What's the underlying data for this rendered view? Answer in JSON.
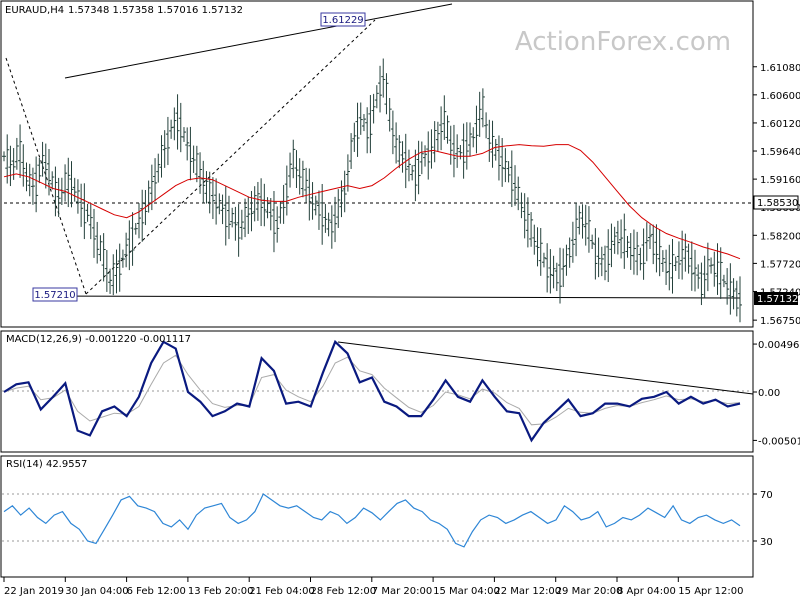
{
  "header": {
    "symbol": "EURAUD,H4",
    "ohlc": "1.57348 1.57358 1.57016 1.57132"
  },
  "watermark": "ActionForex.com",
  "annotations": {
    "high_label": "1.61229",
    "low_label": "1.57210",
    "level_label": "1.58530",
    "current_label": "1.57132"
  },
  "chart_data": [
    {
      "type": "bar",
      "title": "EURAUD,H4",
      "subtitle": "1.57348 1.57358 1.57016 1.57132",
      "ylim": [
        1.5665,
        1.6205
      ],
      "yticks": [
        "1.61080",
        "1.60600",
        "1.60120",
        "1.59640",
        "1.59160",
        "1.58680",
        "1.58200",
        "1.57720",
        "1.57240",
        "1.56750"
      ],
      "xticks": [
        "22 Jan 2019",
        "30 Jan 04:00",
        "6 Feb 12:00",
        "13 Feb 20:00",
        "21 Feb 04:00",
        "28 Feb 12:00",
        "7 Mar 20:00",
        "15 Mar 04:00",
        "22 Mar 12:00",
        "29 Mar 20:00",
        "8 Apr 04:00",
        "15 Apr 12:00"
      ],
      "grid": false,
      "series_price": [
        1.5955,
        1.5935,
        1.5965,
        1.592,
        1.59,
        1.595,
        1.593,
        1.588,
        1.5905,
        1.591,
        1.5875,
        1.586,
        1.582,
        1.5785,
        1.574,
        1.576,
        1.579,
        1.582,
        1.585,
        1.588,
        1.592,
        1.596,
        1.6,
        1.602,
        1.598,
        1.595,
        1.592,
        1.589,
        1.588,
        1.586,
        1.585,
        1.583,
        1.585,
        1.587,
        1.588,
        1.586,
        1.584,
        1.588,
        1.595,
        1.592,
        1.59,
        1.587,
        1.586,
        1.583,
        1.586,
        1.59,
        1.598,
        1.602,
        1.6,
        1.605,
        1.609,
        1.601,
        1.596,
        1.595,
        1.592,
        1.595,
        1.596,
        1.598,
        1.602,
        1.597,
        1.596,
        1.5975,
        1.599,
        1.604,
        1.598,
        1.596,
        1.594,
        1.592,
        1.588,
        1.584,
        1.581,
        1.578,
        1.576,
        1.575,
        1.577,
        1.581,
        1.585,
        1.583,
        1.579,
        1.577,
        1.58,
        1.582,
        1.58,
        1.579,
        1.578,
        1.582,
        1.58,
        1.577,
        1.576,
        1.578,
        1.579,
        1.576,
        1.574,
        1.577,
        1.576,
        1.574,
        1.572,
        1.5713
      ],
      "series_ma": [
        1.592,
        1.5925,
        1.592,
        1.591,
        1.59,
        1.5895,
        1.5885,
        1.5875,
        1.5865,
        1.5855,
        1.585,
        1.586,
        1.5875,
        1.589,
        1.5905,
        1.5915,
        1.5918,
        1.5915,
        1.5905,
        1.5895,
        1.5885,
        1.588,
        1.5878,
        1.5878,
        1.5885,
        1.589,
        1.5895,
        1.59,
        1.5905,
        1.59,
        1.5905,
        1.5918,
        1.5935,
        1.595,
        1.5962,
        1.5965,
        1.596,
        1.5955,
        1.5955,
        1.596,
        1.597,
        1.5973,
        1.5975,
        1.5973,
        1.5972,
        1.5975,
        1.5975,
        1.5965,
        1.5945,
        1.592,
        1.5895,
        1.587,
        1.585,
        1.5835,
        1.5823,
        1.5815,
        1.5808,
        1.58,
        1.5794,
        1.5788,
        1.578
      ],
      "levels": [
        {
          "name": "1.58530",
          "y": 1.5853
        },
        {
          "name": "1.57132",
          "y": 1.57132
        }
      ]
    },
    {
      "type": "line",
      "title": "MACD(12,26,9) -0.001220 -0.001117",
      "ylim": [
        -0.0058,
        0.0058
      ],
      "yticks": [
        "0.004965",
        "0.00",
        "-0.005013"
      ],
      "grid": false,
      "series": [
        {
          "values": [
            0.0,
            0.0008,
            0.001,
            -0.0018,
            -0.0005,
            0.0009,
            -0.004,
            -0.0045,
            -0.002,
            -0.0015,
            -0.0025,
            -0.0005,
            0.003,
            0.0052,
            0.0045,
            0.0,
            -0.001,
            -0.0025,
            -0.002,
            -0.0012,
            -0.0015,
            0.0035,
            0.0022,
            -0.0012,
            -0.001,
            -0.0015,
            0.002,
            0.0052,
            0.004,
            0.001,
            0.0015,
            -0.001,
            -0.0015,
            -0.0025,
            -0.0025,
            -0.0008,
            0.0012,
            -0.0005,
            -0.001,
            0.0012,
            -0.0005,
            -0.002,
            -0.0022,
            -0.005,
            -0.0032,
            -0.002,
            -0.0008,
            -0.0025,
            -0.0022,
            -0.0012,
            -0.0012,
            -0.0015,
            -0.0007,
            -0.0005,
            0.0,
            -0.0012,
            -0.0005,
            -0.0012,
            -0.0008,
            -0.0015,
            -0.0012
          ]
        },
        {
          "values": [
            0.0,
            0.0004,
            0.0006,
            -0.0008,
            -0.0006,
            0.0002,
            -0.002,
            -0.003,
            -0.0026,
            -0.0022,
            -0.0023,
            -0.0015,
            0.0008,
            0.003,
            0.0038,
            0.0018,
            0.0002,
            -0.0012,
            -0.0016,
            -0.0014,
            -0.0014,
            0.0015,
            0.0018,
            0.0002,
            -0.0005,
            -0.001,
            0.0006,
            0.003,
            0.0036,
            0.0022,
            0.0018,
            0.0004,
            -0.0006,
            -0.0016,
            -0.0021,
            -0.0014,
            0.0,
            -0.0003,
            -0.0007,
            0.0003,
            -0.0001,
            -0.0011,
            -0.0017,
            -0.0034,
            -0.0033,
            -0.0026,
            -0.0017,
            -0.0021,
            -0.0022,
            -0.0017,
            -0.0014,
            -0.0015,
            -0.0011,
            -0.0008,
            -0.0004,
            -0.0008,
            -0.0007,
            -0.001,
            -0.0009,
            -0.0012,
            -0.0011
          ]
        }
      ]
    },
    {
      "type": "line",
      "title": "RSI(14) 42.9557",
      "ylim": [
        0,
        100
      ],
      "yticks": [
        "70",
        "30"
      ],
      "grid": false,
      "series": [
        {
          "values": [
            55,
            60,
            52,
            58,
            50,
            45,
            52,
            55,
            45,
            40,
            30,
            28,
            40,
            52,
            65,
            68,
            60,
            58,
            55,
            45,
            42,
            48,
            40,
            52,
            58,
            60,
            62,
            50,
            45,
            48,
            55,
            70,
            65,
            60,
            58,
            60,
            55,
            50,
            48,
            55,
            52,
            45,
            50,
            58,
            54,
            48,
            55,
            62,
            65,
            58,
            55,
            48,
            45,
            40,
            28,
            25,
            38,
            48,
            52,
            50,
            45,
            48,
            52,
            55,
            50,
            45,
            48,
            60,
            55,
            48,
            50,
            55,
            42,
            45,
            50,
            48,
            52,
            58,
            54,
            50,
            60,
            48,
            45,
            50,
            52,
            48,
            45,
            48,
            43
          ]
        }
      ]
    }
  ]
}
